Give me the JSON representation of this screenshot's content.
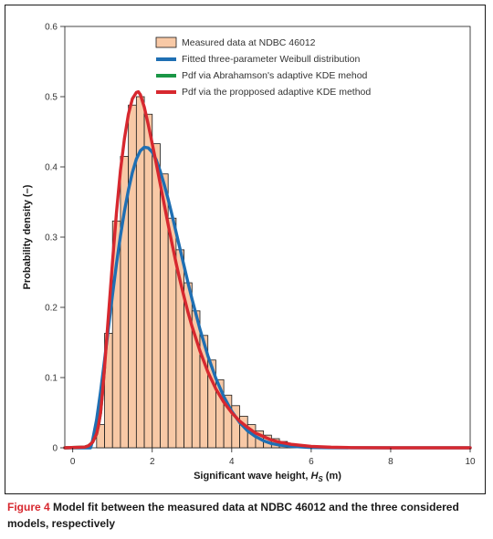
{
  "caption": {
    "label": "Figure 4",
    "text": "Model fit between the measured data at NDBC 46012 and the three considered models, respectively"
  },
  "chart_data": {
    "type": "bar",
    "xlabel_main": "Significant wave height, ",
    "xlabel_symbol": "H",
    "xlabel_sub": "S",
    "xlabel_unit": " (m)",
    "ylabel": "Probability density (–)",
    "xlim": [
      -0.2,
      10
    ],
    "ylim": [
      0,
      0.6
    ],
    "xticks": [
      0,
      2,
      4,
      6,
      8,
      10
    ],
    "xtick_labels": [
      "0",
      "2",
      "4",
      "6",
      "8",
      "10"
    ],
    "yticks": [
      0,
      0.1,
      0.2,
      0.3,
      0.4,
      0.5,
      0.6
    ],
    "ytick_labels": [
      "0",
      "0.1",
      "0.2",
      "0.3",
      "0.4",
      "0.5",
      "0.6"
    ],
    "grid": false,
    "legend_position": "top",
    "colors": {
      "histogram_fill": "#f8c9a6",
      "histogram_edge": "#1a1a1a",
      "weibull": "#1f6fb3",
      "abrahamson_kde": "#1a9646",
      "proposed_kde": "#d7282f"
    },
    "legend": [
      {
        "key": "histogram",
        "label": "Measured data at NDBC 46012"
      },
      {
        "key": "weibull",
        "label": "Fitted three-parameter Weibull distribution"
      },
      {
        "key": "abrahamson_kde",
        "label": "Pdf via Abrahamson's adaptive KDE mehod"
      },
      {
        "key": "proposed_kde",
        "label": "Pdf via the propposed adaptive KDE method"
      }
    ],
    "histogram": {
      "bin_width": 0.2,
      "bin_starts": [
        0.6,
        0.8,
        1.0,
        1.2,
        1.4,
        1.6,
        1.8,
        2.0,
        2.2,
        2.4,
        2.6,
        2.8,
        3.0,
        3.2,
        3.4,
        3.6,
        3.8,
        4.0,
        4.2,
        4.4,
        4.6,
        4.8,
        5.0,
        5.2,
        5.4,
        5.6,
        5.8,
        6.0,
        6.2,
        6.4
      ],
      "values": [
        0.033,
        0.163,
        0.323,
        0.415,
        0.488,
        0.5,
        0.475,
        0.433,
        0.39,
        0.327,
        0.282,
        0.235,
        0.195,
        0.16,
        0.125,
        0.097,
        0.075,
        0.06,
        0.045,
        0.033,
        0.024,
        0.018,
        0.013,
        0.009,
        0.006,
        0.004,
        0.003,
        0.002,
        0.001,
        0.001
      ]
    },
    "series": [
      {
        "key": "weibull",
        "x": [
          -0.2,
          0.45,
          0.5,
          0.6,
          0.7,
          0.8,
          0.9,
          1.0,
          1.1,
          1.2,
          1.3,
          1.4,
          1.5,
          1.6,
          1.7,
          1.8,
          1.9,
          2.0,
          2.1,
          2.2,
          2.3,
          2.4,
          2.5,
          2.6,
          2.7,
          2.8,
          2.9,
          3.0,
          3.2,
          3.4,
          3.6,
          3.8,
          4.0,
          4.2,
          4.4,
          4.6,
          4.8,
          5.0,
          5.2,
          5.5,
          6.0,
          6.5,
          7.0,
          10.0
        ],
        "y": [
          0.0,
          0.0,
          0.011,
          0.04,
          0.08,
          0.125,
          0.172,
          0.218,
          0.262,
          0.302,
          0.337,
          0.367,
          0.392,
          0.411,
          0.423,
          0.428,
          0.427,
          0.421,
          0.41,
          0.394,
          0.375,
          0.354,
          0.331,
          0.307,
          0.283,
          0.259,
          0.235,
          0.212,
          0.169,
          0.131,
          0.099,
          0.073,
          0.052,
          0.036,
          0.024,
          0.016,
          0.01,
          0.006,
          0.004,
          0.002,
          0.0005,
          0.0001,
          0.0,
          0.0
        ]
      },
      {
        "key": "abrahamson_kde",
        "x": [
          -0.2,
          0.3,
          0.4,
          0.5,
          0.6,
          0.65,
          0.7,
          0.75,
          0.8
        ],
        "y": [
          0.0,
          0.001,
          0.003,
          0.008,
          0.02,
          0.033,
          0.05,
          0.08,
          0.115
        ]
      },
      {
        "key": "proposed_kde",
        "x": [
          -0.2,
          0.3,
          0.4,
          0.5,
          0.6,
          0.65,
          0.7,
          0.75,
          0.8,
          0.9,
          1.0,
          1.1,
          1.2,
          1.3,
          1.4,
          1.5,
          1.6,
          1.65,
          1.7,
          1.8,
          1.9,
          2.0,
          2.1,
          2.2,
          2.3,
          2.4,
          2.5,
          2.6,
          2.7,
          2.8,
          2.9,
          3.0,
          3.2,
          3.4,
          3.6,
          3.8,
          4.0,
          4.2,
          4.4,
          4.6,
          4.8,
          5.0,
          5.2,
          5.5,
          6.0,
          6.5,
          7.0,
          8.0,
          10.0
        ],
        "y": [
          0.0,
          0.001,
          0.003,
          0.008,
          0.02,
          0.033,
          0.05,
          0.08,
          0.115,
          0.19,
          0.265,
          0.335,
          0.395,
          0.44,
          0.475,
          0.497,
          0.506,
          0.507,
          0.503,
          0.485,
          0.46,
          0.433,
          0.405,
          0.376,
          0.347,
          0.318,
          0.29,
          0.263,
          0.238,
          0.215,
          0.193,
          0.173,
          0.138,
          0.108,
          0.084,
          0.065,
          0.05,
          0.038,
          0.029,
          0.021,
          0.016,
          0.011,
          0.008,
          0.005,
          0.002,
          0.0008,
          0.0003,
          0.0,
          0.0
        ]
      }
    ]
  }
}
